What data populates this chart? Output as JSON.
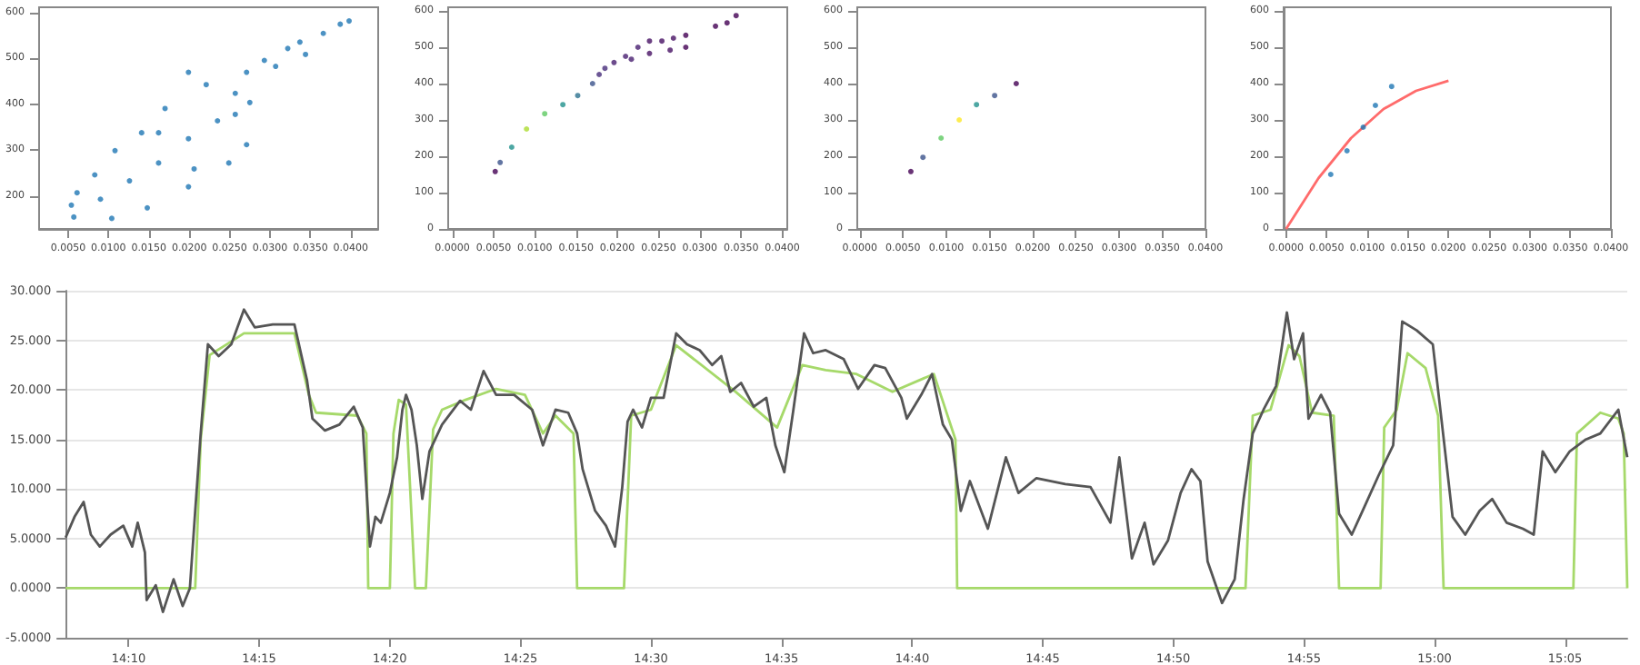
{
  "chart_data": [
    {
      "type": "scatter",
      "marker": "circle",
      "xlim": [
        0.0014,
        0.0434
      ],
      "xticks": [
        {
          "value": 0.005,
          "label": "0.0050"
        },
        {
          "value": 0.01,
          "label": "0.0100"
        },
        {
          "value": 0.015,
          "label": "0.0150"
        },
        {
          "value": 0.02,
          "label": "0.0200"
        },
        {
          "value": 0.025,
          "label": "0.0250"
        },
        {
          "value": 0.03,
          "label": "0.0300"
        },
        {
          "value": 0.035,
          "label": "0.0350"
        },
        {
          "value": 0.04,
          "label": "0.0400"
        }
      ],
      "ylim": [
        128,
        612
      ],
      "yticks": [
        200,
        300,
        400,
        500,
        600
      ],
      "series": [
        {
          "color": "#1f77b4",
          "x": [
            0.0057,
            0.0104,
            0.0148,
            0.0199,
            0.0249,
            0.0271,
            0.0275,
            0.0257,
            0.0221,
            0.0199,
            0.017,
            0.0141,
            0.0108,
            0.0083,
            0.0061,
            0.0054,
            0.009,
            0.0126,
            0.0162,
            0.0199,
            0.0235,
            0.0257,
            0.0162,
            0.0206,
            0.0271,
            0.0293,
            0.0322,
            0.0337,
            0.0366,
            0.0387,
            0.0398,
            0.0307,
            0.0344
          ],
          "values": [
            154,
            151,
            174,
            220,
            272,
            312,
            404,
            424,
            443,
            470,
            391,
            338,
            299,
            246,
            207,
            180,
            193,
            233,
            272,
            325,
            364,
            378,
            338,
            259,
            470,
            496,
            522,
            536,
            555,
            575,
            582,
            483,
            509
          ]
        }
      ]
    },
    {
      "type": "scatter",
      "marker": "circle",
      "xlim": [
        -0.0005,
        0.0406
      ],
      "xticks": [
        {
          "value": 0,
          "label": "0.0000"
        },
        {
          "value": 0.005,
          "label": "0.0050"
        },
        {
          "value": 0.01,
          "label": "0.0100"
        },
        {
          "value": 0.015,
          "label": "0.0150"
        },
        {
          "value": 0.02,
          "label": "0.0200"
        },
        {
          "value": 0.025,
          "label": "0.0250"
        },
        {
          "value": 0.03,
          "label": "0.0300"
        },
        {
          "value": 0.035,
          "label": "0.0350"
        },
        {
          "value": 0.04,
          "label": "0.0400"
        }
      ],
      "ylim": [
        0,
        610
      ],
      "yticks": [
        0,
        100,
        200,
        300,
        400,
        500,
        600
      ],
      "series": [
        {
          "x": [
            0.0052,
            0.0058,
            0.0072,
            0.009,
            0.0112,
            0.0134,
            0.0152,
            0.017,
            0.0178,
            0.0185,
            0.0196,
            0.021,
            0.0217,
            0.0225,
            0.0239,
            0.0239,
            0.0254,
            0.0264,
            0.0268,
            0.0283,
            0.0283,
            0.0319,
            0.0333,
            0.0344
          ],
          "values": [
            158,
            183,
            225,
            275,
            317,
            342,
            367,
            400,
            425,
            442,
            458,
            475,
            467,
            500,
            483,
            517,
            517,
            492,
            525,
            533,
            500,
            558,
            567,
            587
          ],
          "colors": [
            "#440154",
            "#3b528b",
            "#21918c",
            "#addc30",
            "#5ec962",
            "#21918c",
            "#2c728e",
            "#3b528b",
            "#472d7b",
            "#472d7b",
            "#481f70",
            "#481f70",
            "#481f70",
            "#481f70",
            "#471164",
            "#471164",
            "#471164",
            "#471164",
            "#471164",
            "#440154",
            "#440154",
            "#440154",
            "#440154",
            "#440154"
          ]
        }
      ]
    },
    {
      "type": "scatter",
      "marker": "circle",
      "xlim": [
        -0.0003,
        0.04
      ],
      "xticks": [
        {
          "value": 0,
          "label": "0.0000"
        },
        {
          "value": 0.005,
          "label": "0.0050"
        },
        {
          "value": 0.01,
          "label": "0.0100"
        },
        {
          "value": 0.015,
          "label": "0.0150"
        },
        {
          "value": 0.02,
          "label": "0.0200"
        },
        {
          "value": 0.025,
          "label": "0.0250"
        },
        {
          "value": 0.03,
          "label": "0.0300"
        },
        {
          "value": 0.035,
          "label": "0.0350"
        },
        {
          "value": 0.04,
          "label": "0.0400"
        }
      ],
      "ylim": [
        0,
        610
      ],
      "yticks": [
        0,
        100,
        200,
        300,
        400,
        500,
        600
      ],
      "series": [
        {
          "x": [
            0.0059,
            0.0073,
            0.0094,
            0.0115,
            0.0135,
            0.0156,
            0.0181
          ],
          "values": [
            158,
            197,
            250,
            300,
            342,
            367,
            400
          ],
          "colors": [
            "#440154",
            "#3b528b",
            "#5ec962",
            "#fde725",
            "#21918c",
            "#3b528b",
            "#440154"
          ]
        }
      ]
    },
    {
      "type": "scatter",
      "marker": "circle",
      "xlim": [
        -0.0003,
        0.04
      ],
      "xticks": [
        {
          "value": 0,
          "label": "0.0000"
        },
        {
          "value": 0.005,
          "label": "0.0050"
        },
        {
          "value": 0.01,
          "label": "0.0100"
        },
        {
          "value": 0.015,
          "label": "0.0150"
        },
        {
          "value": 0.02,
          "label": "0.0200"
        },
        {
          "value": 0.025,
          "label": "0.0250"
        },
        {
          "value": 0.03,
          "label": "0.0300"
        },
        {
          "value": 0.035,
          "label": "0.0350"
        },
        {
          "value": 0.04,
          "label": "0.0400"
        }
      ],
      "ylim": [
        0,
        610
      ],
      "yticks": [
        0,
        100,
        200,
        300,
        400,
        500,
        600
      ],
      "series": [
        {
          "type": "scatter",
          "color": "#1f77b4",
          "x": [
            0.0055,
            0.0075,
            0.0095,
            0.011,
            0.013
          ],
          "values": [
            150,
            215,
            280,
            340,
            392
          ]
        },
        {
          "type": "line",
          "color": "#ff6b6b",
          "marker": "none",
          "x": [
            0,
            0.004,
            0.008,
            0.012,
            0.016,
            0.02
          ],
          "values": [
            0,
            140,
            250,
            330,
            380,
            408
          ]
        }
      ]
    },
    {
      "type": "line",
      "marker": "none",
      "grid": "y",
      "line_style": "solid",
      "xlim": [
        14.1265,
        15.123
      ],
      "xticks": [
        {
          "value": 14.1667,
          "label": "14:10"
        },
        {
          "value": 14.25,
          "label": "14:15"
        },
        {
          "value": 14.3333,
          "label": "14:20"
        },
        {
          "value": 14.4167,
          "label": "14:25"
        },
        {
          "value": 14.5,
          "label": "14:30"
        },
        {
          "value": 14.5833,
          "label": "14:35"
        },
        {
          "value": 14.6667,
          "label": "14:40"
        },
        {
          "value": 14.75,
          "label": "14:45"
        },
        {
          "value": 14.8333,
          "label": "14:50"
        },
        {
          "value": 14.9167,
          "label": "14:55"
        },
        {
          "value": 15.0,
          "label": "15:00"
        },
        {
          "value": 15.0833,
          "label": "15:05"
        }
      ],
      "ylim": [
        -5,
        30
      ],
      "yticks": [
        {
          "value": -5,
          "label": "-5.0000"
        },
        {
          "value": 0,
          "label": "0.0000"
        },
        {
          "value": 5,
          "label": "5.0000"
        },
        {
          "value": 10,
          "label": "10.000"
        },
        {
          "value": 15,
          "label": "15.000"
        },
        {
          "value": 20,
          "label": "20.000"
        },
        {
          "value": 25,
          "label": "25.000"
        },
        {
          "value": 30,
          "label": "30.000"
        }
      ],
      "series": [
        {
          "color": "#a6d96a",
          "x": [
            14.1265,
            14.2092,
            14.2127,
            14.2184,
            14.2403,
            14.2725,
            14.2817,
            14.2863,
            14.3127,
            14.3184,
            14.3196,
            14.3334,
            14.3357,
            14.3391,
            14.3437,
            14.3495,
            14.3564,
            14.361,
            14.3667,
            14.3817,
            14.4012,
            14.4196,
            14.4311,
            14.4391,
            14.4506,
            14.4529,
            14.4828,
            14.4874,
            14.5,
            14.5161,
            14.5541,
            14.5805,
            14.5966,
            14.6115,
            14.6311,
            14.6541,
            14.6805,
            14.6943,
            14.6954,
            14.8794,
            14.884,
            14.8954,
            14.9069,
            14.9138,
            14.9219,
            14.9357,
            14.9391,
            14.9656,
            14.9679,
            14.9759,
            14.9828,
            14.9943,
            15.0023,
            15.0058,
            15.0886,
            15.0909,
            15.1058,
            15.1173,
            15.1207,
            15.123
          ],
          "values": [
            0,
            0,
            15,
            23.5,
            25.7,
            25.7,
            19.5,
            17.7,
            17.4,
            15.6,
            0,
            0,
            15.6,
            19,
            18.5,
            0,
            0,
            16,
            18,
            19,
            20.1,
            19.5,
            15.6,
            17.4,
            15.6,
            0,
            0,
            17.4,
            18,
            24.5,
            19.8,
            16.2,
            22.5,
            22,
            21.6,
            19.8,
            21.6,
            15,
            0,
            0,
            17.4,
            18,
            24.5,
            23.4,
            17.7,
            17.4,
            0,
            0,
            16.2,
            18,
            23.7,
            22.2,
            17.4,
            0,
            0,
            15.6,
            17.7,
            17.1,
            15.6,
            0
          ]
        },
        {
          "color": "#555555",
          "x": [
            14.1265,
            14.1322,
            14.138,
            14.1426,
            14.1483,
            14.1552,
            14.1633,
            14.169,
            14.1725,
            14.1771,
            14.1782,
            14.184,
            14.1886,
            14.1954,
            14.2012,
            14.2058,
            14.2092,
            14.2127,
            14.2173,
            14.2242,
            14.2322,
            14.2403,
            14.2472,
            14.2587,
            14.2725,
            14.2805,
            14.284,
            14.292,
            14.3012,
            14.3104,
            14.3161,
            14.3207,
            14.3242,
            14.3276,
            14.3334,
            14.338,
            14.3414,
            14.3437,
            14.3472,
            14.3506,
            14.3541,
            14.3587,
            14.3667,
            14.3782,
            14.3851,
            14.3932,
            14.4012,
            14.4127,
            14.4242,
            14.4311,
            14.4391,
            14.4472,
            14.4529,
            14.4564,
            14.4644,
            14.4713,
            14.4771,
            14.4817,
            14.4851,
            14.4886,
            14.4943,
            14.5,
            14.5081,
            14.5161,
            14.523,
            14.5311,
            14.5391,
            14.5449,
            14.5506,
            14.5575,
            14.5656,
            14.5736,
            14.5794,
            14.5851,
            14.5909,
            14.5977,
            14.6035,
            14.6115,
            14.623,
            14.6322,
            14.6426,
            14.6495,
            14.6598,
            14.6633,
            14.6725,
            14.6794,
            14.6863,
            14.692,
            14.6977,
            14.7035,
            14.715,
            14.7265,
            14.7345,
            14.746,
            14.7644,
            14.7805,
            14.7932,
            14.7989,
            14.8069,
            14.815,
            14.8207,
            14.8299,
            14.838,
            14.8449,
            14.8506,
            14.8552,
            14.8644,
            14.8725,
            14.8782,
            14.884,
            14.8909,
            14.8989,
            14.9058,
            14.9104,
            14.9161,
            14.9196,
            14.9276,
            14.9334,
            14.9391,
            14.9472,
            14.9541,
            14.9644,
            14.9736,
            14.9794,
            14.9886,
            14.9989,
            15.0046,
            15.0115,
            15.0196,
            15.0288,
            15.0368,
            15.046,
            15.0564,
            15.0633,
            15.069,
            15.0771,
            15.0863,
            15.0966,
            15.1058,
            15.1173,
            15.123
          ],
          "values": [
            5.1,
            7.2,
            8.7,
            5.4,
            4.2,
            5.4,
            6.3,
            4.2,
            6.6,
            3.6,
            -1.2,
            0.3,
            -2.4,
            0.9,
            -1.8,
            0,
            7.8,
            15.6,
            24.6,
            23.4,
            24.6,
            28.1,
            26.3,
            26.6,
            26.6,
            21,
            17.1,
            15.9,
            16.5,
            18.3,
            16.2,
            4.2,
            7.2,
            6.6,
            9.6,
            13.2,
            18,
            19.5,
            18,
            14.4,
            9,
            13.8,
            16.5,
            18.9,
            18,
            21.9,
            19.5,
            19.5,
            18,
            14.4,
            18,
            17.7,
            15.6,
            12,
            7.8,
            6.3,
            4.2,
            10.2,
            16.8,
            18,
            16.2,
            19.2,
            19.2,
            25.7,
            24.6,
            24,
            22.5,
            23.4,
            19.8,
            20.7,
            18.3,
            19.2,
            14.4,
            11.7,
            18,
            25.7,
            23.7,
            24,
            23.1,
            20.1,
            22.5,
            22.2,
            19.2,
            17.1,
            19.5,
            21.6,
            16.5,
            15,
            7.8,
            10.8,
            6,
            13.2,
            9.6,
            11.1,
            10.5,
            10.2,
            6.6,
            13.2,
            3,
            6.6,
            2.4,
            4.8,
            9.6,
            12,
            10.8,
            2.7,
            -1.5,
            0.9,
            9,
            15.6,
            18,
            20.4,
            27.8,
            23.1,
            25.7,
            17.1,
            19.5,
            17.7,
            7.5,
            5.4,
            7.8,
            11.4,
            14.4,
            26.9,
            26,
            24.6,
            16.8,
            7.2,
            5.4,
            7.8,
            9,
            6.6,
            6,
            5.4,
            13.8,
            11.7,
            13.8,
            15,
            15.6,
            18,
            13.2
          ]
        }
      ]
    }
  ]
}
